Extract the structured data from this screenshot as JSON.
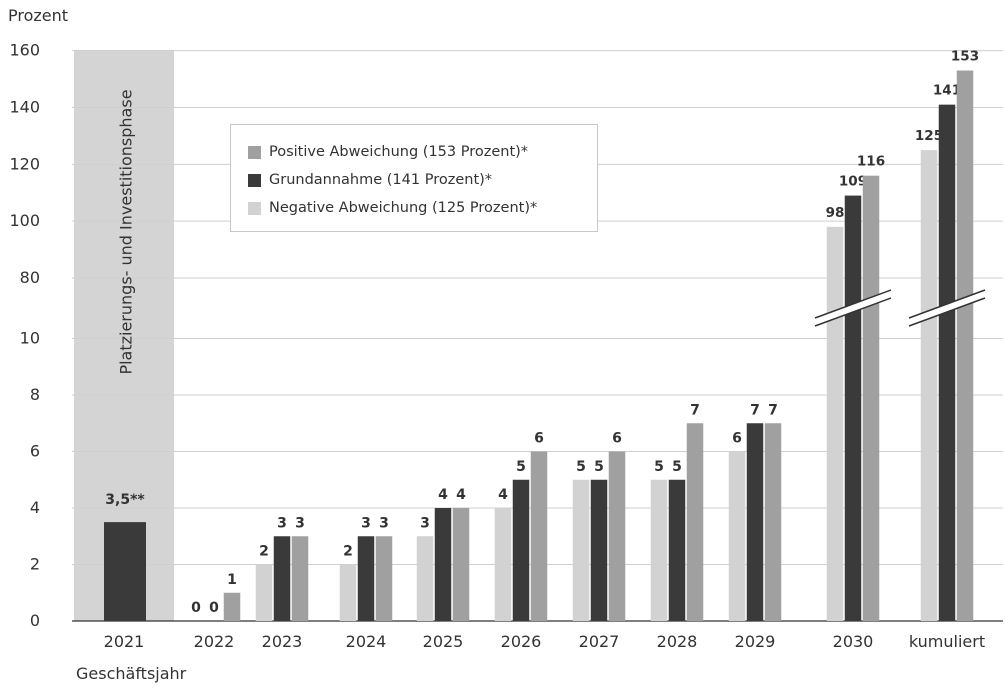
{
  "chart_data": {
    "type": "bar",
    "ylabel": "Prozent",
    "xlabel": "Geschäftsjahr",
    "categories": [
      "2021",
      "2022",
      "2023",
      "2024",
      "2025",
      "2026",
      "2027",
      "2028",
      "2029",
      "2030",
      "kumuliert"
    ],
    "y_ticks_lower": [
      "0",
      "2",
      "4",
      "6",
      "8",
      "10"
    ],
    "y_ticks_upper": [
      "80",
      "100",
      "120",
      "140",
      "160"
    ],
    "axis_break": "between 10 and 80",
    "grid": true,
    "phase_label": "Platzierungs- und Investitionsphase",
    "phase_year": {
      "category": "2021",
      "value": 3.5,
      "label": "3,5**",
      "color": "#3a3a3a"
    },
    "series": [
      {
        "name": "Negative Abweichung (125 Prozent)*",
        "color": "#d2d2d2",
        "values": [
          null,
          0,
          2,
          2,
          3,
          4,
          5,
          5,
          6,
          98,
          125
        ],
        "labels": [
          "",
          "0",
          "2",
          "2",
          "3",
          "4",
          "5",
          "5",
          "6",
          "98",
          "125"
        ]
      },
      {
        "name": "Grundannahme (141 Prozent)*",
        "color": "#3a3a3a",
        "values": [
          null,
          0,
          3,
          3,
          4,
          5,
          5,
          5,
          7,
          109,
          141
        ],
        "labels": [
          "",
          "0",
          "3",
          "3",
          "4",
          "5",
          "5",
          "5",
          "7",
          "109",
          "141"
        ]
      },
      {
        "name": "Positive Abweichung (153 Prozent)*",
        "color": "#a0a0a0",
        "values": [
          null,
          1,
          3,
          3,
          4,
          6,
          6,
          7,
          7,
          116,
          153
        ],
        "labels": [
          "",
          "1",
          "3",
          "3",
          "4",
          "6",
          "6",
          "7",
          "7",
          "116",
          "153"
        ]
      }
    ],
    "legend": {
      "placement": "top-left-inside",
      "entries": [
        {
          "name": "Positive Abweichung (153 Prozent)*",
          "color": "#a0a0a0"
        },
        {
          "name": "Grundannahme (141 Prozent)*",
          "color": "#3a3a3a"
        },
        {
          "name": "Negative Abweichung (125 Prozent)*",
          "color": "#d2d2d2"
        }
      ]
    }
  }
}
